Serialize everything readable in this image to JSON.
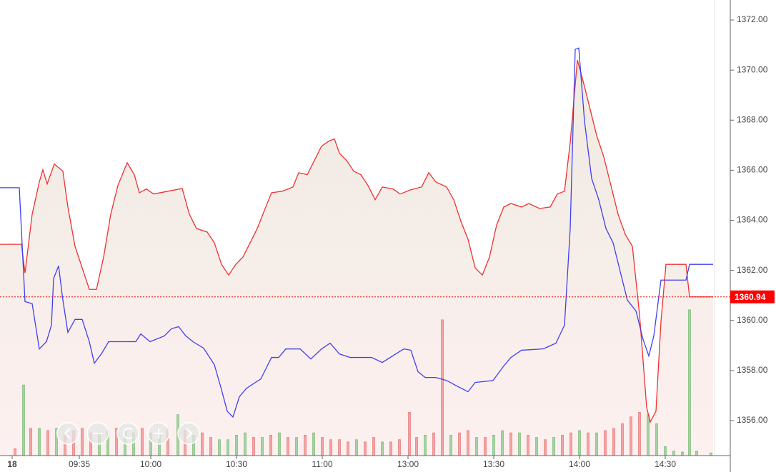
{
  "chart_data": {
    "type": "line",
    "xlim": [
      -22.75,
      232.75
    ],
    "ylim": [
      1354.6,
      1372.8
    ],
    "y2lim": [
      0,
      100
    ],
    "xticks": [
      {
        "value": -18.5,
        "label": "18"
      },
      {
        "value": 5,
        "label": "09:35"
      },
      {
        "value": 30,
        "label": "10:00"
      },
      {
        "value": 60,
        "label": "10:30"
      },
      {
        "value": 90,
        "label": "11:00"
      },
      {
        "value": 120,
        "label": "13:00"
      },
      {
        "value": 150,
        "label": "13:30"
      },
      {
        "value": 180,
        "label": "14:00"
      },
      {
        "value": 210,
        "label": "14:30"
      }
    ],
    "yticks": [
      {
        "value": 1356,
        "label": "1356.00"
      },
      {
        "value": 1358,
        "label": "1358.00"
      },
      {
        "value": 1360,
        "label": "1360.00"
      },
      {
        "value": 1362,
        "label": "1362.00"
      },
      {
        "value": 1364,
        "label": "1364.00"
      },
      {
        "value": 1366,
        "label": "1366.00"
      },
      {
        "value": 1368,
        "label": "1368.00"
      },
      {
        "value": 1370,
        "label": "1370.00"
      },
      {
        "value": 1372,
        "label": "1372.00"
      }
    ],
    "series": [
      {
        "type": "bar",
        "axis": "y2",
        "up_color": "#f4a3a3",
        "down_color": "#a3d3a0",
        "x": [
          -17.5,
          -14.5,
          -12,
          -9,
          -6,
          -3,
          0,
          3,
          6,
          9,
          12,
          15,
          18,
          21,
          24,
          27,
          30,
          33,
          36,
          39.5,
          42,
          45,
          48,
          51,
          54,
          57,
          60,
          63,
          66,
          69,
          72,
          75,
          78,
          81,
          84,
          87,
          90,
          93,
          96,
          99,
          102,
          105,
          108,
          111,
          114,
          117,
          120.5,
          123,
          126,
          129,
          132,
          135,
          138,
          141,
          144,
          147,
          150,
          153,
          156,
          159,
          162,
          165,
          168,
          171,
          174,
          177,
          180,
          183,
          186,
          189,
          192,
          195,
          198,
          201,
          204,
          207,
          210,
          213,
          216,
          218.5,
          221,
          226
        ],
        "values": [
          1.5,
          15.5,
          6,
          6,
          5.5,
          6,
          5,
          5.5,
          6,
          5,
          5,
          5.5,
          6,
          5.5,
          5,
          6,
          5,
          4.5,
          6,
          9,
          5.5,
          4.5,
          5,
          4,
          3.5,
          3.5,
          4.5,
          5,
          4,
          4,
          4.5,
          5,
          4,
          4,
          4.5,
          5,
          4,
          3.5,
          3.5,
          3,
          3.5,
          3,
          4,
          3,
          3,
          3.5,
          9.5,
          4,
          4.5,
          5,
          29.8,
          4.5,
          5,
          5.5,
          4,
          4,
          4.5,
          5.5,
          5,
          5,
          4.5,
          4,
          3.5,
          4,
          4.5,
          5,
          5.5,
          5,
          5,
          5.5,
          6,
          7,
          8.5,
          9.5,
          9,
          7,
          2,
          1,
          0.8,
          32,
          1,
          0.6
        ],
        "rising": [
          true,
          false,
          true,
          false,
          true,
          false,
          true,
          true,
          true,
          true,
          false,
          false,
          true,
          false,
          false,
          true,
          false,
          false,
          true,
          false,
          true,
          false,
          true,
          true,
          false,
          false,
          false,
          false,
          true,
          false,
          true,
          false,
          true,
          false,
          true,
          false,
          true,
          true,
          true,
          true,
          false,
          true,
          true,
          false,
          true,
          true,
          true,
          true,
          false,
          true,
          true,
          false,
          true,
          true,
          false,
          true,
          false,
          false,
          true,
          false,
          true,
          false,
          true,
          false,
          true,
          true,
          false,
          true,
          false,
          true,
          true,
          true,
          true,
          true,
          false,
          false,
          false,
          false,
          false,
          false,
          false,
          false
        ]
      },
      {
        "color": "#f03030",
        "area": true,
        "x": [
          -22.75,
          -15.25,
          -14,
          -11.5,
          -9,
          -7.75,
          -6.25,
          -3.75,
          -0.75,
          1,
          3.5,
          6,
          8.5,
          11,
          13.5,
          16,
          18.5,
          21.75,
          24.25,
          26,
          28.5,
          31,
          36,
          41,
          43.5,
          46,
          49.75,
          52.25,
          54.75,
          57.25,
          59.75,
          62.25,
          64.75,
          67.25,
          69.75,
          72.25,
          76,
          79.75,
          81.75,
          84.75,
          87.25,
          89.75,
          92.25,
          94.25,
          96,
          98.5,
          101,
          103.5,
          106,
          108.5,
          111,
          114.75,
          117.25,
          121,
          124.75,
          127.25,
          129.75,
          133.5,
          136,
          138.5,
          141,
          143.5,
          146,
          148.5,
          151,
          153.5,
          156,
          159.75,
          162.25,
          166,
          169.75,
          172.25,
          174.75,
          176.75,
          179.25,
          181,
          183.5,
          186,
          188.5,
          191,
          193.5,
          196,
          198.5,
          201,
          203.5,
          204.75,
          206.75,
          208.5,
          210.25,
          217.25,
          218.5,
          226.75
        ],
        "values": [
          1363.04,
          1363.04,
          1361.9,
          1364.24,
          1365.53,
          1366.02,
          1365.45,
          1366.25,
          1365.96,
          1364.53,
          1362.96,
          1362.1,
          1361.24,
          1361.24,
          1362.53,
          1364.24,
          1365.39,
          1366.3,
          1365.82,
          1365.1,
          1365.25,
          1365.05,
          1365.16,
          1365.27,
          1364.24,
          1363.67,
          1363.53,
          1363.1,
          1362.24,
          1361.81,
          1362.24,
          1362.53,
          1363.1,
          1363.67,
          1364.39,
          1365.1,
          1365.16,
          1365.33,
          1365.9,
          1365.82,
          1366.39,
          1366.96,
          1367.16,
          1367.25,
          1366.68,
          1366.39,
          1365.96,
          1365.82,
          1365.39,
          1364.82,
          1365.33,
          1365.25,
          1365.05,
          1365.22,
          1365.33,
          1365.9,
          1365.53,
          1365.33,
          1364.82,
          1363.96,
          1363.24,
          1362.1,
          1361.81,
          1362.53,
          1363.81,
          1364.53,
          1364.67,
          1364.53,
          1364.67,
          1364.47,
          1364.53,
          1365.05,
          1365.16,
          1367.11,
          1370.4,
          1369.68,
          1368.54,
          1367.39,
          1366.53,
          1365.39,
          1364.24,
          1363.44,
          1362.96,
          1360.24,
          1356.52,
          1355.94,
          1356.37,
          1359.95,
          1362.24,
          1362.24,
          1360.94,
          1360.94
        ]
      },
      {
        "color": "#4040f0",
        "x": [
          -22.75,
          -16,
          -14,
          -11.5,
          -9,
          -6.5,
          -4.75,
          -4,
          -2.25,
          -0.75,
          1,
          3.5,
          6,
          8.5,
          10.25,
          12.75,
          15.25,
          24.75,
          26.5,
          29.75,
          34.75,
          37.25,
          39.75,
          42.25,
          44.75,
          48.5,
          52.25,
          54.75,
          56.75,
          58.75,
          61,
          63.5,
          68.5,
          72.25,
          74.75,
          77.25,
          82.25,
          86,
          89.75,
          92.75,
          96,
          99.75,
          107.25,
          111,
          118.5,
          121,
          123.5,
          126,
          129.75,
          133.5,
          137.25,
          141,
          143.5,
          149.75,
          153.5,
          156,
          159.75,
          167.25,
          171.75,
          174.75,
          176.75,
          178.5,
          179.75,
          181.75,
          184.25,
          186.75,
          189.25,
          191.75,
          194.25,
          196.75,
          199.75,
          202.25,
          204.25,
          206,
          208.5,
          217.25,
          218.5,
          226.75
        ],
        "values": [
          1365.3,
          1365.3,
          1360.75,
          1360.67,
          1358.86,
          1359.15,
          1359.81,
          1361.67,
          1362.18,
          1360.81,
          1359.52,
          1360.04,
          1360.04,
          1359.15,
          1358.29,
          1358.67,
          1359.15,
          1359.15,
          1359.46,
          1359.15,
          1359.38,
          1359.67,
          1359.75,
          1359.38,
          1359.15,
          1358.89,
          1358.23,
          1357.23,
          1356.37,
          1356.14,
          1356.95,
          1357.29,
          1357.66,
          1358.52,
          1358.52,
          1358.86,
          1358.86,
          1358.46,
          1358.86,
          1359.09,
          1358.66,
          1358.52,
          1358.52,
          1358.32,
          1358.86,
          1358.81,
          1357.95,
          1357.72,
          1357.72,
          1357.6,
          1357.37,
          1357.15,
          1357.52,
          1357.6,
          1358.18,
          1358.52,
          1358.81,
          1358.86,
          1359.09,
          1359.81,
          1363.67,
          1370.83,
          1370.88,
          1367.96,
          1365.67,
          1364.82,
          1363.67,
          1363.1,
          1361.95,
          1360.81,
          1360.38,
          1359.24,
          1358.58,
          1359.38,
          1361.61,
          1361.61,
          1362.24,
          1362.24
        ]
      }
    ],
    "last_price": {
      "value": 1360.94,
      "label": "1360.94",
      "color": "#ff0000"
    }
  }
}
